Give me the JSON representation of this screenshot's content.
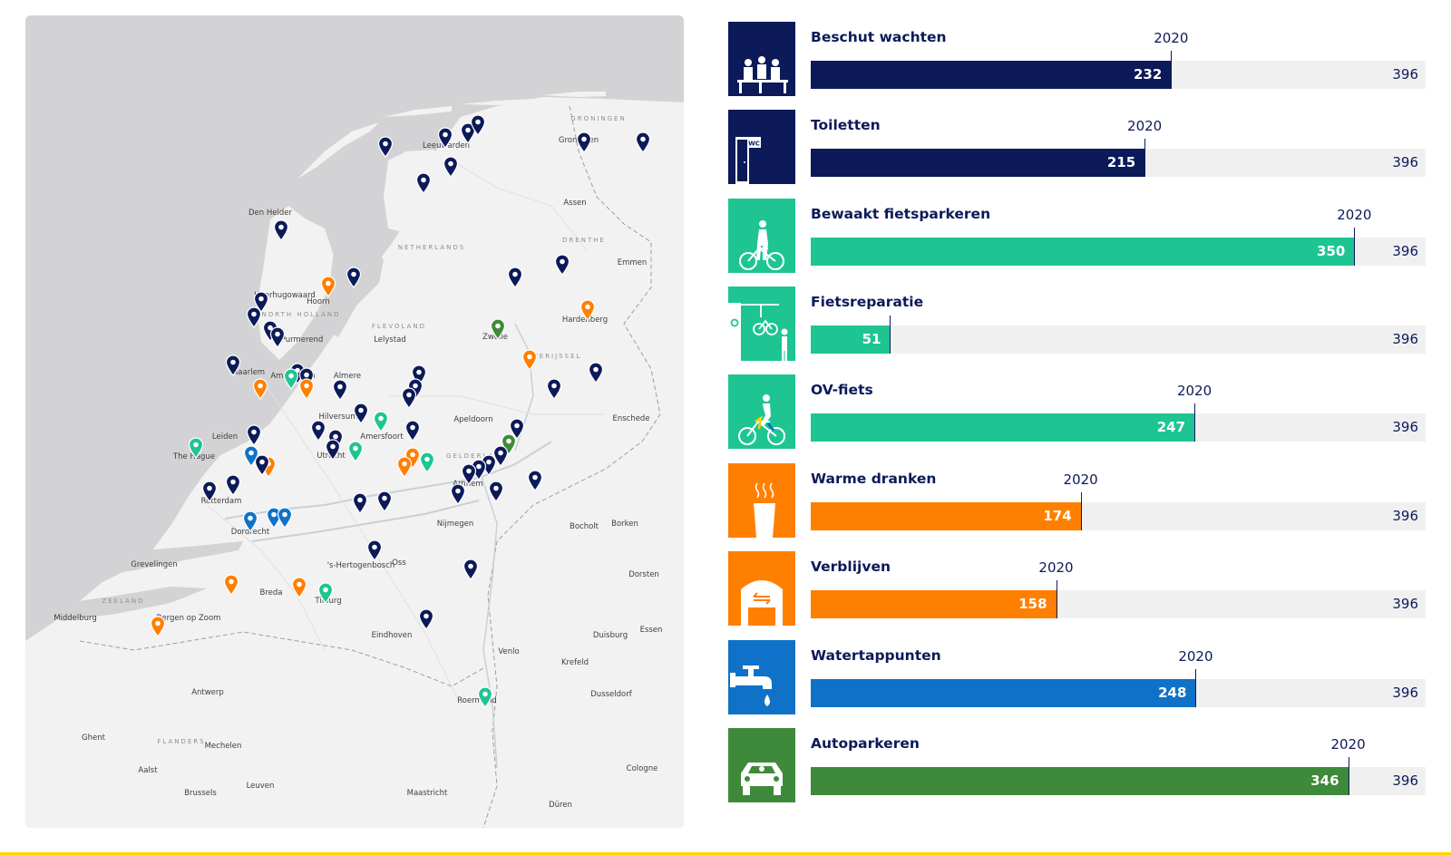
{
  "map": {
    "labels": {
      "country": "NETHERLANDS",
      "regions": [
        "GRONINGEN",
        "DRENTHE",
        "OVERIJSSEL",
        "FLEVOLAND",
        "NORTH HOLLAND",
        "GELDERLAND",
        "FLANDERS",
        "ZEELAND"
      ],
      "cities": [
        "Leeuwarden",
        "Groningen",
        "Assen",
        "Emmen",
        "Den Helder",
        "Heerhugowaard",
        "Hoorn",
        "Purmerend",
        "Lelystad",
        "Zwolle",
        "Hardenberg",
        "Haarlem",
        "Amsterdam",
        "Almere",
        "Hilversum",
        "Amersfoort",
        "Apeldoorn",
        "Enschede",
        "Leiden",
        "The Hague",
        "Utrecht",
        "Rotterdam",
        "Dordrecht",
        "Arnhem",
        "Nijmegen",
        "Oss",
        "'s-Hertogenbosch",
        "Breda",
        "Tilburg",
        "Eindhoven",
        "Bergen op Zoom",
        "Middelburg",
        "Venlo",
        "Roermond",
        "Bocholt",
        "Borken",
        "Dorsten",
        "Duisburg",
        "Essen",
        "Krefeld",
        "Dusseldorf",
        "Antwerp",
        "Mechelen",
        "Ghent",
        "Aalst",
        "Brussels",
        "Leuven",
        "Maastricht",
        "Cologne",
        "Düren",
        "Grevelingen"
      ]
    },
    "pin_colors": {
      "navy": "#0c1a59",
      "orange": "#ff7f00",
      "teal": "#1ec592",
      "blue": "#0f72c8",
      "green": "#3f8a3a"
    },
    "pin_icon": "map-pin-icon"
  },
  "facilities": [
    {
      "label": "Beschut wachten",
      "value": "232",
      "year": "2020",
      "total": "396",
      "pct": 58.6,
      "color": "#0c1a59",
      "icon": "waiting-people-icon"
    },
    {
      "label": "Toiletten",
      "value": "215",
      "year": "2020",
      "total": "396",
      "pct": 54.3,
      "color": "#0c1a59",
      "icon": "toilet-wc-icon"
    },
    {
      "label": "Bewaakt fietsparkeren",
      "value": "350",
      "year": "2020",
      "total": "396",
      "pct": 88.4,
      "color": "#1ec592",
      "icon": "guarded-bike-parking-icon"
    },
    {
      "label": "Fietsreparatie",
      "value": "51",
      "year": "",
      "total": "396",
      "pct": 12.9,
      "color": "#1ec592",
      "icon": "bike-repair-icon"
    },
    {
      "label": "OV-fiets",
      "value": "247",
      "year": "2020",
      "total": "396",
      "pct": 62.4,
      "color": "#1ec592",
      "icon": "ov-bike-icon"
    },
    {
      "label": "Warme dranken",
      "value": "174",
      "year": "2020",
      "total": "396",
      "pct": 43.9,
      "color": "#ff7f00",
      "icon": "hot-drink-icon"
    },
    {
      "label": "Verblijven",
      "value": "158",
      "year": "2020",
      "total": "396",
      "pct": 39.9,
      "color": "#ff7f00",
      "icon": "waiting-room-icon"
    },
    {
      "label": "Watertappunten",
      "value": "248",
      "year": "2020",
      "total": "396",
      "pct": 62.6,
      "color": "#0f72c8",
      "icon": "water-tap-icon"
    },
    {
      "label": "Autoparkeren",
      "value": "346",
      "year": "2020",
      "total": "396",
      "pct": 87.4,
      "color": "#3f8a3a",
      "icon": "car-parking-icon"
    }
  ]
}
